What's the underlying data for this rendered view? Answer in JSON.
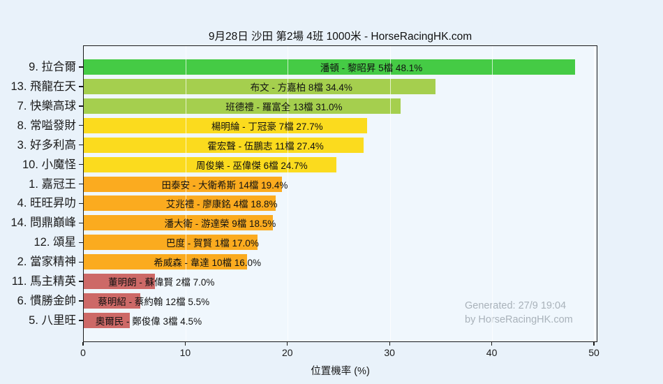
{
  "page": {
    "title": "9月28日 沙田 第2場 4班 1000米 - HorseRacingHK.com",
    "watermark_line1": "Generated: 27/9 19:04",
    "watermark_line2": "by HorseRacingHK.com"
  },
  "colors": {
    "background": "#e9f2fa",
    "plot_background": "#f0f7fd",
    "axis": "#1a1a1a",
    "watermark": "#a9b2ba",
    "green": "#45cb45",
    "yellow_green": "#a5cf4e",
    "yellow": "#fbdb1e",
    "orange": "#fbab1f",
    "red": "#cd6967"
  },
  "chart_data": {
    "type": "bar",
    "orientation": "horizontal",
    "title": "9月28日 沙田 第2場 4班 1000米 - HorseRacingHK.com",
    "xlabel": "位置機率 (%)",
    "ylabel": "",
    "xlim": [
      0,
      50.3
    ],
    "xticks": [
      0,
      10,
      20,
      30,
      40,
      50
    ],
    "grid": "vertical gridlines at xticks drawn over bars",
    "legend_position": "none",
    "categories": [
      "9. 拉合爾",
      "13. 飛龍在天",
      "7. 快樂高球",
      "8. 常嗌發財",
      "3. 好多利高",
      "10. 小魔怪",
      "1. 嘉冠王",
      "4. 旺旺昇叻",
      "14. 問鼎巔峰",
      "12. 頌星",
      "2. 當家精神",
      "11. 馬主精英",
      "6. 慣勝金帥",
      "5. 八里旺"
    ],
    "values": [
      48.1,
      34.4,
      31.0,
      27.7,
      27.4,
      24.7,
      19.4,
      18.8,
      18.5,
      17.0,
      16.0,
      7.0,
      5.5,
      4.5
    ],
    "horses": [
      {
        "number": 9,
        "name": "拉合爾",
        "axis_label": "9. 拉合爾",
        "jockey": "潘頓",
        "trainer": "黎昭昇",
        "gate": 5,
        "probability_pct": 48.1,
        "bar_label": "潘頓 - 黎昭昇 5檔  48.1%",
        "color": "#45cb45"
      },
      {
        "number": 13,
        "name": "飛龍在天",
        "axis_label": "13. 飛龍在天",
        "jockey": "布文",
        "trainer": "方嘉柏",
        "gate": 8,
        "probability_pct": 34.4,
        "bar_label": "布文 - 方嘉柏 8檔  34.4%",
        "color": "#a5cf4e"
      },
      {
        "number": 7,
        "name": "快樂高球",
        "axis_label": "7. 快樂高球",
        "jockey": "班德禮",
        "trainer": "羅富全",
        "gate": 13,
        "probability_pct": 31.0,
        "bar_label": "班德禮 - 羅富全 13檔  31.0%",
        "color": "#a5cf4e"
      },
      {
        "number": 8,
        "name": "常嗌發財",
        "axis_label": "8. 常嗌發財",
        "jockey": "楊明綸",
        "trainer": "丁冠豪",
        "gate": 7,
        "probability_pct": 27.7,
        "bar_label": "楊明綸 - 丁冠豪 7檔  27.7%",
        "color": "#fbdb1e"
      },
      {
        "number": 3,
        "name": "好多利高",
        "axis_label": "3. 好多利高",
        "jockey": "霍宏聲",
        "trainer": "伍鵬志",
        "gate": 11,
        "probability_pct": 27.4,
        "bar_label": "霍宏聲 - 伍鵬志 11檔  27.4%",
        "color": "#fbdb1e"
      },
      {
        "number": 10,
        "name": "小魔怪",
        "axis_label": "10. 小魔怪",
        "jockey": "周俊樂",
        "trainer": "巫偉傑",
        "gate": 6,
        "probability_pct": 24.7,
        "bar_label": "周俊樂 - 巫偉傑 6檔  24.7%",
        "color": "#fbdb1e"
      },
      {
        "number": 1,
        "name": "嘉冠王",
        "axis_label": "1. 嘉冠王",
        "jockey": "田泰安",
        "trainer": "大衛希斯",
        "gate": 14,
        "probability_pct": 19.4,
        "bar_label": "田泰安 - 大衛希斯 14檔  19.4%",
        "color": "#fbab1f"
      },
      {
        "number": 4,
        "name": "旺旺昇叻",
        "axis_label": "4. 旺旺昇叻",
        "jockey": "艾兆禮",
        "trainer": "廖康銘",
        "gate": 4,
        "probability_pct": 18.8,
        "bar_label": "艾兆禮 - 廖康銘 4檔  18.8%",
        "color": "#fbab1f"
      },
      {
        "number": 14,
        "name": "問鼎巔峰",
        "axis_label": "14. 問鼎巔峰",
        "jockey": "潘大衛",
        "trainer": "游達榮",
        "gate": 9,
        "probability_pct": 18.5,
        "bar_label": "潘大衛 - 游達榮 9檔  18.5%",
        "color": "#fbab1f"
      },
      {
        "number": 12,
        "name": "頌星",
        "axis_label": "12. 頌星",
        "jockey": "巴度",
        "trainer": "賀賢",
        "gate": 1,
        "probability_pct": 17.0,
        "bar_label": "巴度 - 賀賢 1檔  17.0%",
        "color": "#fbab1f"
      },
      {
        "number": 2,
        "name": "當家精神",
        "axis_label": "2. 當家精神",
        "jockey": "希威森",
        "trainer": "韋達",
        "gate": 10,
        "probability_pct": 16.0,
        "bar_label": "希威森 - 韋達 10檔  16.0%",
        "color": "#fbab1f"
      },
      {
        "number": 11,
        "name": "馬主精英",
        "axis_label": "11. 馬主精英",
        "jockey": "董明朗",
        "trainer": "蘇偉賢",
        "gate": 2,
        "probability_pct": 7.0,
        "bar_label": "董明朗 - 蘇偉賢 2檔  7.0%",
        "color": "#cd6967"
      },
      {
        "number": 6,
        "name": "慣勝金帥",
        "axis_label": "6. 慣勝金帥",
        "jockey": "蔡明紹",
        "trainer": "蔡約翰",
        "gate": 12,
        "probability_pct": 5.5,
        "bar_label": "蔡明紹 - 蔡約翰 12檔  5.5%",
        "color": "#cd6967"
      },
      {
        "number": 5,
        "name": "八里旺",
        "axis_label": "5. 八里旺",
        "jockey": "奧爾民",
        "trainer": "鄭俊偉",
        "gate": 3,
        "probability_pct": 4.5,
        "bar_label": "奧爾民 - 鄭俊偉 3檔  4.5%",
        "color": "#cd6967"
      }
    ]
  }
}
